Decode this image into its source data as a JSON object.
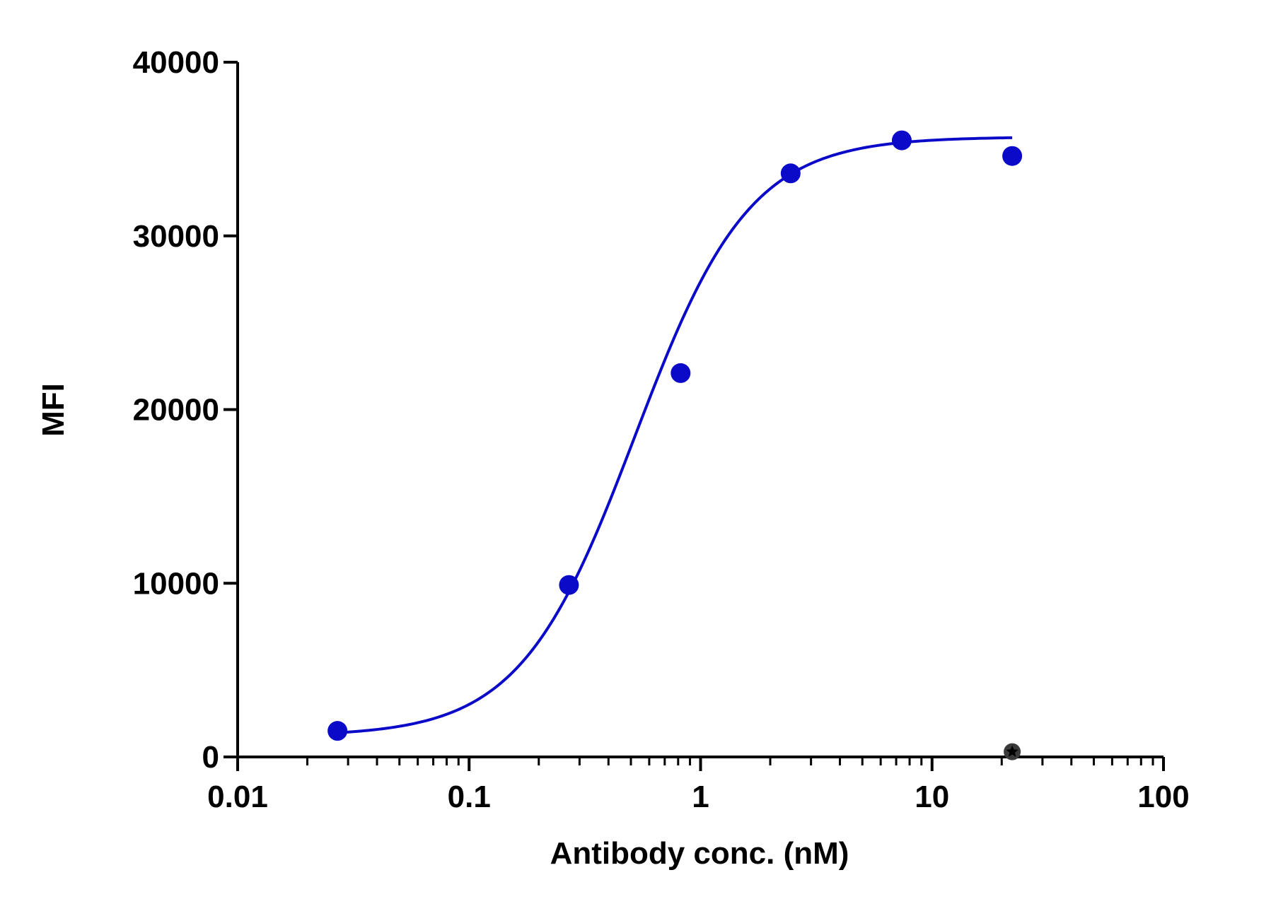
{
  "chart_data": {
    "type": "scatter",
    "title": "",
    "xlabel": "Antibody conc. (nM)",
    "ylabel": "MFI",
    "xscale": "log",
    "xlim": [
      0.01,
      100
    ],
    "ylim": [
      0,
      40000
    ],
    "x_ticks": [
      0.01,
      0.1,
      1,
      10,
      100
    ],
    "x_tick_labels": [
      "0.01",
      "0.1",
      "1",
      "10",
      "100"
    ],
    "y_ticks": [
      0,
      10000,
      20000,
      30000,
      40000
    ],
    "y_tick_labels": [
      "0",
      "10000",
      "20000",
      "30000",
      "40000"
    ],
    "grid": false,
    "legend": "none",
    "series": [
      {
        "marker": "circle",
        "color": "#0a0ac8",
        "x": [
          0.027,
          0.27,
          0.82,
          2.45,
          7.4,
          22.2
        ],
        "y": [
          1500,
          9900,
          22100,
          33600,
          35500,
          34600
        ]
      },
      {
        "marker": "star",
        "color": "#3a3a3a",
        "x": [
          22.2
        ],
        "y": [
          300
        ]
      }
    ],
    "fit_curve": {
      "model": "4PL",
      "color": "#0a0ac8",
      "bottom": 1200,
      "top": 35700,
      "ec50": 0.52,
      "hill": 1.75,
      "x_range": [
        0.027,
        22.2
      ]
    }
  }
}
